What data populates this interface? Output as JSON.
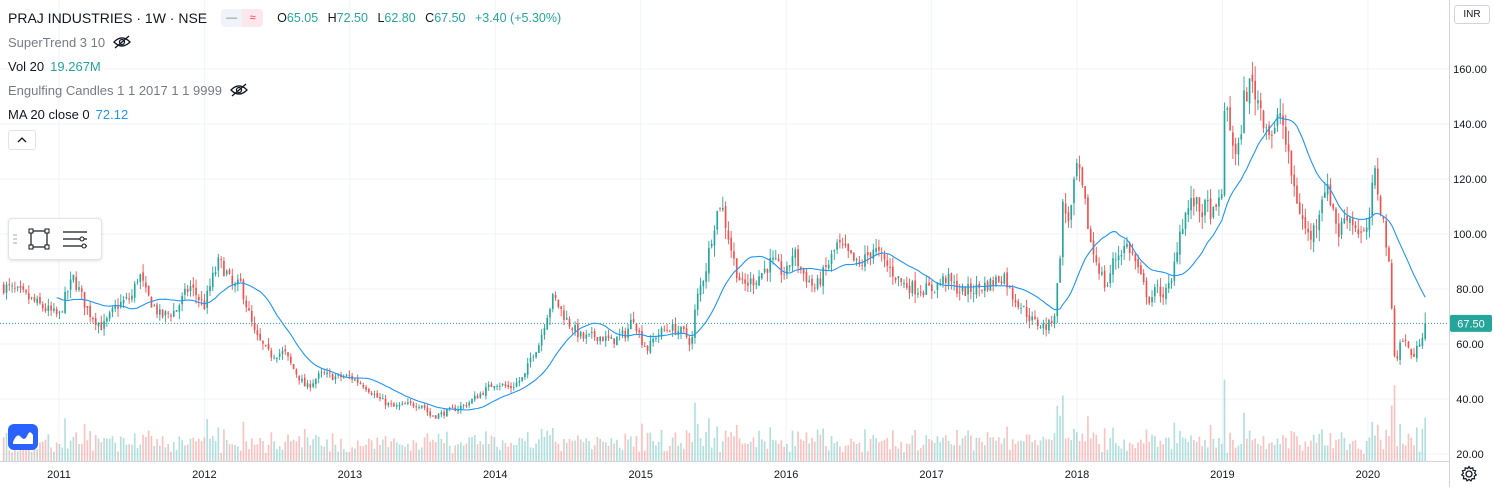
{
  "header": {
    "symbol_line": "PRAJ INDUSTRIES · 1W · NSE",
    "ohlc": {
      "open_label": "O",
      "open": "65.05",
      "high_label": "H",
      "high": "72.50",
      "low_label": "L",
      "low": "62.80",
      "close_label": "C",
      "close": "67.50",
      "change": "+3.40 (+5.30%)"
    },
    "mode_buttons": [
      "—",
      "≈"
    ]
  },
  "indicators": [
    {
      "name": "SuperTrend 3 10",
      "value": "",
      "hidden": true,
      "icon": "eye-off-icon"
    },
    {
      "name": "Vol 20",
      "value": "19.267M",
      "value_color": "#26a69a"
    },
    {
      "name": "Engulfing Candles 1 1 2017 1 1 9999",
      "value": "",
      "hidden": true,
      "icon": "eye-off-icon"
    },
    {
      "name": "MA 20 close 0",
      "value": "72.12",
      "value_color": "#2196f3"
    }
  ],
  "toolbar_icons": [
    "grip-icon",
    "rectangle-select-icon",
    "object-tree-icon"
  ],
  "currency": "INR",
  "colors": {
    "up": "#26a69a",
    "down": "#ef5350",
    "ma": "#2196f3",
    "last_price_badge": "#26a69a"
  },
  "chart_data": {
    "type": "candlestick",
    "price_axis": {
      "ticks": [
        "160.00",
        "140.00",
        "120.00",
        "100.00",
        "80.00",
        "60.00",
        "40.00",
        "20.00"
      ],
      "tick_values": [
        160,
        140,
        120,
        100,
        80,
        60,
        40,
        20
      ],
      "range": [
        18,
        170
      ],
      "last_price_label": "67.50",
      "last_price": 67.5
    },
    "time_axis": {
      "ticks": [
        "2011",
        "2012",
        "2013",
        "2014",
        "2015",
        "2016",
        "2017",
        "2018",
        "2019",
        "2020"
      ],
      "range_years": [
        2010.62,
        2020.4
      ]
    },
    "price_path": [
      [
        2010.62,
        81
      ],
      [
        2010.75,
        78
      ],
      [
        2010.9,
        73
      ],
      [
        2011.0,
        70
      ],
      [
        2011.05,
        78
      ],
      [
        2011.1,
        84
      ],
      [
        2011.2,
        72
      ],
      [
        2011.3,
        66
      ],
      [
        2011.4,
        74
      ],
      [
        2011.5,
        77
      ],
      [
        2011.55,
        86
      ],
      [
        2011.6,
        78
      ],
      [
        2011.7,
        70
      ],
      [
        2011.8,
        72
      ],
      [
        2011.9,
        81
      ],
      [
        2012.0,
        74
      ],
      [
        2012.05,
        83
      ],
      [
        2012.1,
        90
      ],
      [
        2012.15,
        86
      ],
      [
        2012.2,
        80
      ],
      [
        2012.25,
        82
      ],
      [
        2012.3,
        72
      ],
      [
        2012.35,
        63
      ],
      [
        2012.45,
        56
      ],
      [
        2012.55,
        57
      ],
      [
        2012.6,
        52
      ],
      [
        2012.7,
        44
      ],
      [
        2012.8,
        49
      ],
      [
        2012.9,
        48
      ],
      [
        2013.0,
        48
      ],
      [
        2013.1,
        45
      ],
      [
        2013.2,
        40
      ],
      [
        2013.3,
        37
      ],
      [
        2013.4,
        38
      ],
      [
        2013.5,
        38
      ],
      [
        2013.55,
        34
      ],
      [
        2013.6,
        34
      ],
      [
        2013.7,
        36
      ],
      [
        2013.8,
        38
      ],
      [
        2013.9,
        42
      ],
      [
        2014.0,
        46
      ],
      [
        2014.1,
        44
      ],
      [
        2014.2,
        48
      ],
      [
        2014.25,
        56
      ],
      [
        2014.3,
        60
      ],
      [
        2014.35,
        70
      ],
      [
        2014.4,
        77
      ],
      [
        2014.5,
        68
      ],
      [
        2014.6,
        62
      ],
      [
        2014.7,
        63
      ],
      [
        2014.8,
        61
      ],
      [
        2014.9,
        64
      ],
      [
        2014.95,
        70
      ],
      [
        2015.0,
        62
      ],
      [
        2015.05,
        58
      ],
      [
        2015.1,
        63
      ],
      [
        2015.2,
        66
      ],
      [
        2015.3,
        64
      ],
      [
        2015.35,
        60
      ],
      [
        2015.38,
        75
      ],
      [
        2015.45,
        88
      ],
      [
        2015.5,
        103
      ],
      [
        2015.55,
        112
      ],
      [
        2015.6,
        100
      ],
      [
        2015.65,
        88
      ],
      [
        2015.7,
        81
      ],
      [
        2015.8,
        84
      ],
      [
        2015.9,
        90
      ],
      [
        2016.0,
        85
      ],
      [
        2016.05,
        94
      ],
      [
        2016.1,
        87
      ],
      [
        2016.2,
        80
      ],
      [
        2016.3,
        90
      ],
      [
        2016.35,
        96
      ],
      [
        2016.4,
        94
      ],
      [
        2016.5,
        88
      ],
      [
        2016.6,
        95
      ],
      [
        2016.7,
        88
      ],
      [
        2016.8,
        82
      ],
      [
        2016.9,
        80
      ],
      [
        2017.0,
        80
      ],
      [
        2017.1,
        84
      ],
      [
        2017.2,
        79
      ],
      [
        2017.3,
        80
      ],
      [
        2017.4,
        82
      ],
      [
        2017.5,
        85
      ],
      [
        2017.55,
        78
      ],
      [
        2017.6,
        75
      ],
      [
        2017.7,
        68
      ],
      [
        2017.8,
        66
      ],
      [
        2017.85,
        72
      ],
      [
        2017.88,
        90
      ],
      [
        2017.9,
        110
      ],
      [
        2017.95,
        105
      ],
      [
        2018.0,
        125
      ],
      [
        2018.05,
        112
      ],
      [
        2018.1,
        95
      ],
      [
        2018.15,
        88
      ],
      [
        2018.2,
        80
      ],
      [
        2018.25,
        90
      ],
      [
        2018.3,
        94
      ],
      [
        2018.35,
        96
      ],
      [
        2018.4,
        90
      ],
      [
        2018.45,
        82
      ],
      [
        2018.5,
        76
      ],
      [
        2018.55,
        80
      ],
      [
        2018.6,
        78
      ],
      [
        2018.65,
        82
      ],
      [
        2018.7,
        100
      ],
      [
        2018.75,
        108
      ],
      [
        2018.8,
        112
      ],
      [
        2018.85,
        108
      ],
      [
        2018.9,
        110
      ],
      [
        2018.95,
        106
      ],
      [
        2019.0,
        118
      ],
      [
        2019.02,
        150
      ],
      [
        2019.05,
        140
      ],
      [
        2019.1,
        125
      ],
      [
        2019.15,
        150
      ],
      [
        2019.2,
        155
      ],
      [
        2019.25,
        148
      ],
      [
        2019.3,
        140
      ],
      [
        2019.35,
        135
      ],
      [
        2019.4,
        145
      ],
      [
        2019.45,
        128
      ],
      [
        2019.5,
        115
      ],
      [
        2019.55,
        105
      ],
      [
        2019.6,
        98
      ],
      [
        2019.65,
        105
      ],
      [
        2019.7,
        118
      ],
      [
        2019.75,
        112
      ],
      [
        2019.8,
        100
      ],
      [
        2019.85,
        108
      ],
      [
        2019.9,
        104
      ],
      [
        2019.95,
        100
      ],
      [
        2020.0,
        100
      ],
      [
        2020.02,
        112
      ],
      [
        2020.05,
        122
      ],
      [
        2020.08,
        112
      ],
      [
        2020.12,
        100
      ],
      [
        2020.15,
        85
      ],
      [
        2020.17,
        68
      ],
      [
        2020.19,
        52
      ],
      [
        2020.22,
        60
      ],
      [
        2020.25,
        62
      ],
      [
        2020.28,
        58
      ],
      [
        2020.32,
        55
      ],
      [
        2020.36,
        62
      ],
      [
        2020.4,
        67.5
      ]
    ]
  }
}
